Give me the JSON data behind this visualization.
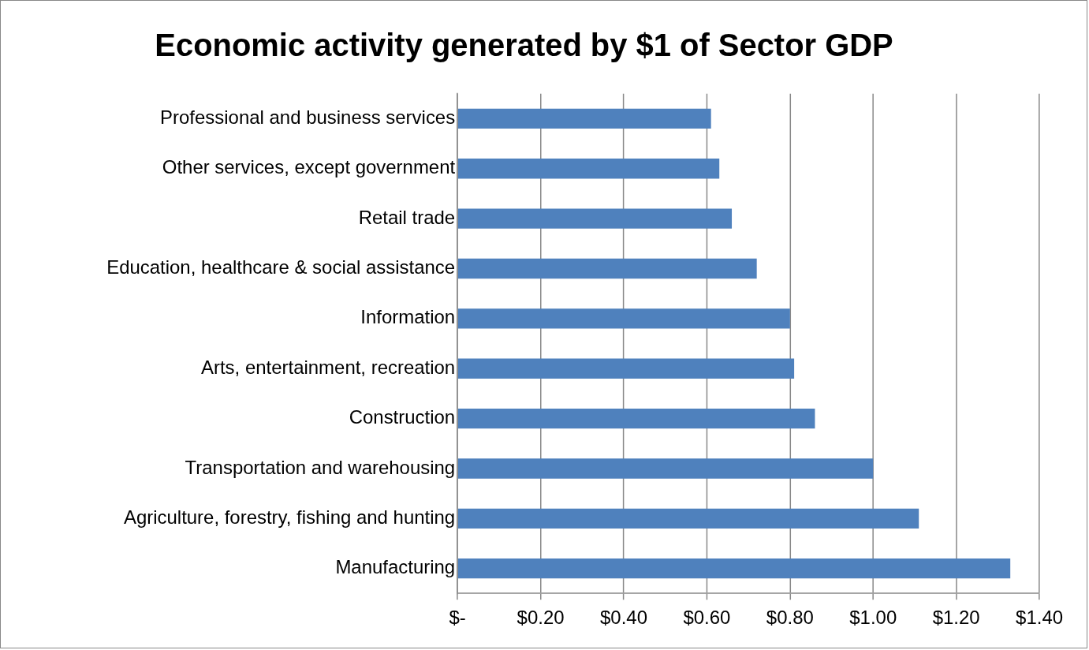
{
  "chart_data": {
    "type": "bar",
    "orientation": "horizontal",
    "title": "Economic activity generated by $1 of Sector GDP",
    "categories": [
      "Professional and business services",
      "Other services, except government",
      "Retail trade",
      "Education, healthcare & social assistance",
      "Information",
      "Arts, entertainment, recreation",
      "Construction",
      "Transportation and warehousing",
      "Agriculture, forestry, fishing and hunting",
      "Manufacturing"
    ],
    "values": [
      0.61,
      0.63,
      0.66,
      0.72,
      0.8,
      0.81,
      0.86,
      1.0,
      1.11,
      1.33
    ],
    "color": "#4f81bd",
    "xlim": [
      0,
      1.4
    ],
    "xticks": [
      {
        "value": 0,
        "label": "$-"
      },
      {
        "value": 0.2,
        "label": "$0.20"
      },
      {
        "value": 0.4,
        "label": "$0.40"
      },
      {
        "value": 0.6,
        "label": "$0.60"
      },
      {
        "value": 0.8,
        "label": "$0.80"
      },
      {
        "value": 1.0,
        "label": "$1.00"
      },
      {
        "value": 1.2,
        "label": "$1.20"
      },
      {
        "value": 1.4,
        "label": "$1.40"
      }
    ],
    "grid": "x",
    "legend": false
  }
}
